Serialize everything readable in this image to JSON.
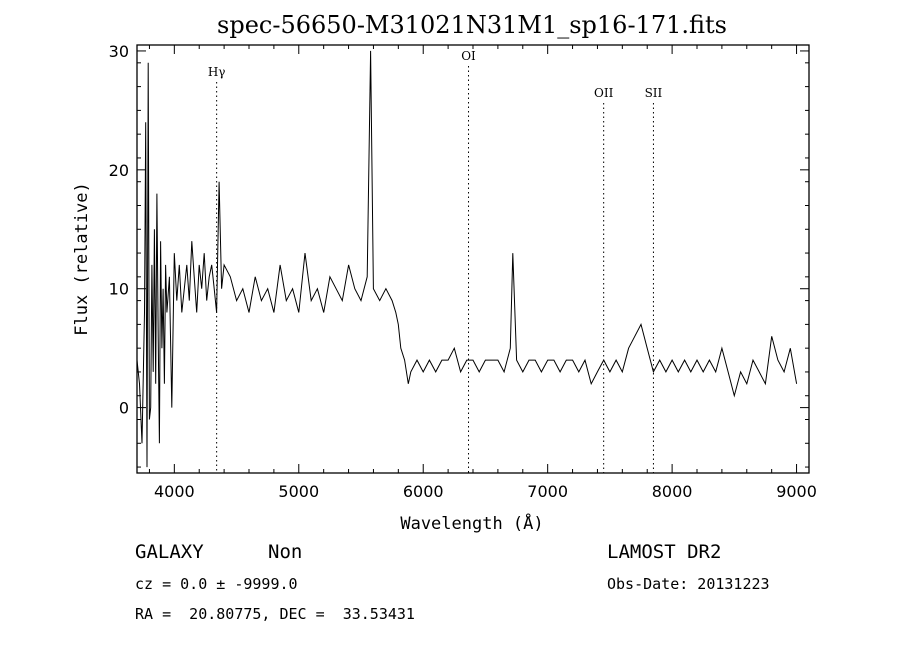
{
  "chart_data": {
    "type": "line",
    "title": "spec-56650-M31021N31M1_sp16-171.fits",
    "xlabel": "Wavelength (Å)",
    "ylabel": "Flux (relative)",
    "xlim": [
      3700,
      9100
    ],
    "ylim": [
      -5.5,
      30.5
    ],
    "xticks": [
      4000,
      5000,
      6000,
      7000,
      8000,
      9000
    ],
    "yticks": [
      0,
      10,
      20,
      30
    ],
    "grid": false,
    "lines": [
      {
        "label": "Hγ",
        "x": 4340
      },
      {
        "label": "OI",
        "x": 6364
      },
      {
        "label": "OII",
        "x": 7450
      },
      {
        "label": "SII",
        "x": 7850
      }
    ],
    "series": [
      {
        "x": [
          3700,
          3720,
          3740,
          3760,
          3770,
          3780,
          3790,
          3800,
          3810,
          3820,
          3830,
          3840,
          3850,
          3860,
          3870,
          3880,
          3890,
          3900,
          3910,
          3920,
          3930,
          3940,
          3960,
          3980,
          4000,
          4020,
          4040,
          4060,
          4080,
          4100,
          4120,
          4140,
          4160,
          4180,
          4200,
          4220,
          4240,
          4260,
          4280,
          4300,
          4320,
          4340,
          4360,
          4380,
          4400,
          4450,
          4500,
          4550,
          4600,
          4650,
          4700,
          4750,
          4800,
          4850,
          4900,
          4950,
          5000,
          5050,
          5100,
          5150,
          5200,
          5250,
          5300,
          5350,
          5400,
          5450,
          5500,
          5550,
          5577,
          5600,
          5650,
          5700,
          5750,
          5780,
          5800,
          5820,
          5850,
          5880,
          5900,
          5950,
          6000,
          6050,
          6100,
          6150,
          6200,
          6250,
          6300,
          6350,
          6400,
          6450,
          6500,
          6550,
          6600,
          6650,
          6700,
          6720,
          6750,
          6800,
          6850,
          6900,
          6950,
          7000,
          7050,
          7100,
          7150,
          7200,
          7250,
          7300,
          7350,
          7400,
          7450,
          7500,
          7550,
          7600,
          7650,
          7700,
          7750,
          7800,
          7850,
          7900,
          7950,
          8000,
          8050,
          8100,
          8150,
          8200,
          8250,
          8300,
          8350,
          8400,
          8450,
          8500,
          8550,
          8600,
          8650,
          8700,
          8750,
          8800,
          8850,
          8900,
          8950,
          9000
        ],
        "y": [
          4,
          2,
          -3,
          8,
          24,
          -5,
          29,
          -1,
          0,
          12,
          3,
          15,
          2,
          18,
          6,
          -3,
          14,
          5,
          10,
          2,
          12,
          8,
          11,
          0,
          13,
          9,
          12,
          8,
          10,
          12,
          9,
          14,
          11,
          8,
          12,
          10,
          13,
          9,
          11,
          12,
          10,
          8,
          19,
          10,
          12,
          11,
          9,
          10,
          8,
          11,
          9,
          10,
          8,
          12,
          9,
          10,
          8,
          13,
          9,
          10,
          8,
          11,
          10,
          9,
          12,
          10,
          9,
          11,
          30,
          10,
          9,
          10,
          9,
          8,
          7,
          5,
          4,
          2,
          3,
          4,
          3,
          4,
          3,
          4,
          4,
          5,
          3,
          4,
          4,
          3,
          4,
          4,
          4,
          3,
          5,
          13,
          4,
          3,
          4,
          4,
          3,
          4,
          4,
          3,
          4,
          4,
          3,
          4,
          2,
          3,
          4,
          3,
          4,
          3,
          5,
          6,
          7,
          5,
          3,
          4,
          3,
          4,
          3,
          4,
          3,
          4,
          3,
          4,
          3,
          5,
          3,
          1,
          3,
          2,
          4,
          3,
          2,
          6,
          4,
          3,
          5,
          2
        ]
      }
    ]
  },
  "info": {
    "object_class": "GALAXY",
    "subclass": "Non",
    "cz": "cz = 0.0 ± -9999.0",
    "radec": "RA =  20.80775, DEC =  33.53431",
    "survey": "LAMOST DR2",
    "obs_date": "Obs-Date: 20131223"
  }
}
